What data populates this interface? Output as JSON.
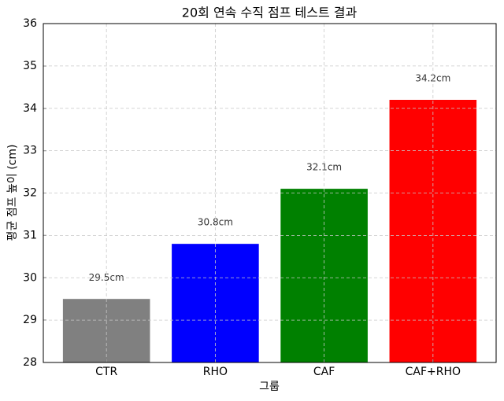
{
  "chart_data": {
    "type": "bar",
    "title": "20회 연속 수직 점프 테스트 결과",
    "x_label": "그룹",
    "y_label": "평균 점프 높이 (cm)",
    "categories": [
      "CTR",
      "RHO",
      "CAF",
      "CAF+RHO"
    ],
    "values": [
      29.5,
      30.8,
      32.1,
      34.2
    ],
    "value_labels": [
      "29.5cm",
      "30.8cm",
      "32.1cm",
      "34.2cm"
    ],
    "colors": [
      "#808080",
      "#0000ff",
      "#008000",
      "#ff0000"
    ],
    "ylim": [
      28,
      36
    ],
    "yticks": [
      28,
      29,
      30,
      31,
      32,
      33,
      34,
      35,
      36
    ],
    "grid": true
  }
}
